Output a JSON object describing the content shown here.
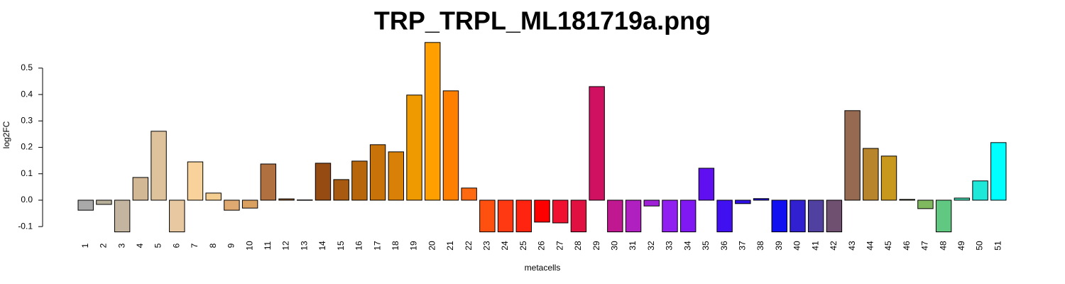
{
  "chart_data": {
    "type": "bar",
    "title": "TRP_TRPL_ML181719a.png",
    "x_label": "metacells",
    "y_label": "log2FC",
    "categories": [
      "1",
      "2",
      "3",
      "4",
      "5",
      "6",
      "7",
      "8",
      "9",
      "10",
      "11",
      "12",
      "13",
      "14",
      "15",
      "16",
      "17",
      "18",
      "19",
      "20",
      "21",
      "22",
      "23",
      "24",
      "25",
      "26",
      "27",
      "28",
      "29",
      "30",
      "31",
      "32",
      "33",
      "34",
      "35",
      "36",
      "37",
      "38",
      "39",
      "40",
      "41",
      "42",
      "43",
      "44",
      "45",
      "46",
      "47",
      "48",
      "49",
      "50",
      "51"
    ],
    "values": [
      -0.038,
      -0.016,
      -0.12,
      0.086,
      0.261,
      -0.12,
      0.145,
      0.027,
      -0.038,
      -0.03,
      0.137,
      0.005,
      0.001,
      0.14,
      0.078,
      0.148,
      0.21,
      0.183,
      0.398,
      0.597,
      0.414,
      0.046,
      -0.12,
      -0.12,
      -0.12,
      -0.083,
      -0.086,
      -0.12,
      0.43,
      -0.12,
      -0.12,
      -0.022,
      -0.12,
      -0.12,
      0.121,
      -0.12,
      -0.013,
      0.006,
      -0.12,
      -0.12,
      -0.12,
      -0.12,
      0.339,
      0.196,
      0.167,
      0.003,
      -0.032,
      -0.12,
      0.008,
      0.073,
      0.218
    ],
    "colors": [
      "#a9a9a9",
      "#b8b09a",
      "#c4b5a0",
      "#d2b894",
      "#dec29c",
      "#e8c8a0",
      "#f8d29a",
      "#f4cd90",
      "#dfa870",
      "#d9a060",
      "#b07040",
      "#a0612e",
      "#9a5a25",
      "#954b12",
      "#a85a10",
      "#b8660c",
      "#c8720a",
      "#d88008",
      "#ee9a00",
      "#ffa000",
      "#ff8000",
      "#ff6a10",
      "#ff5010",
      "#ff3a12",
      "#ff2410",
      "#ff0000",
      "#f01030",
      "#e01040",
      "#d01060",
      "#c01890",
      "#b020c0",
      "#a020d8",
      "#9020f0",
      "#8018f4",
      "#6010f0",
      "#4010f0",
      "#3010e8",
      "#2010e0",
      "#1010f0",
      "#3020d0",
      "#5040a0",
      "#705070",
      "#966a50",
      "#b8842c",
      "#c8981c",
      "#a0a040",
      "#80b860",
      "#60c880",
      "#40d8b0",
      "#20e8d8",
      "#00ffff"
    ],
    "ylim": [
      -0.12,
      0.6
    ],
    "yticks": [
      -0.1,
      {
        "value": 0,
        "label": "0.0"
      },
      0.1,
      0.2,
      0.3,
      0.4,
      0.5
    ]
  }
}
